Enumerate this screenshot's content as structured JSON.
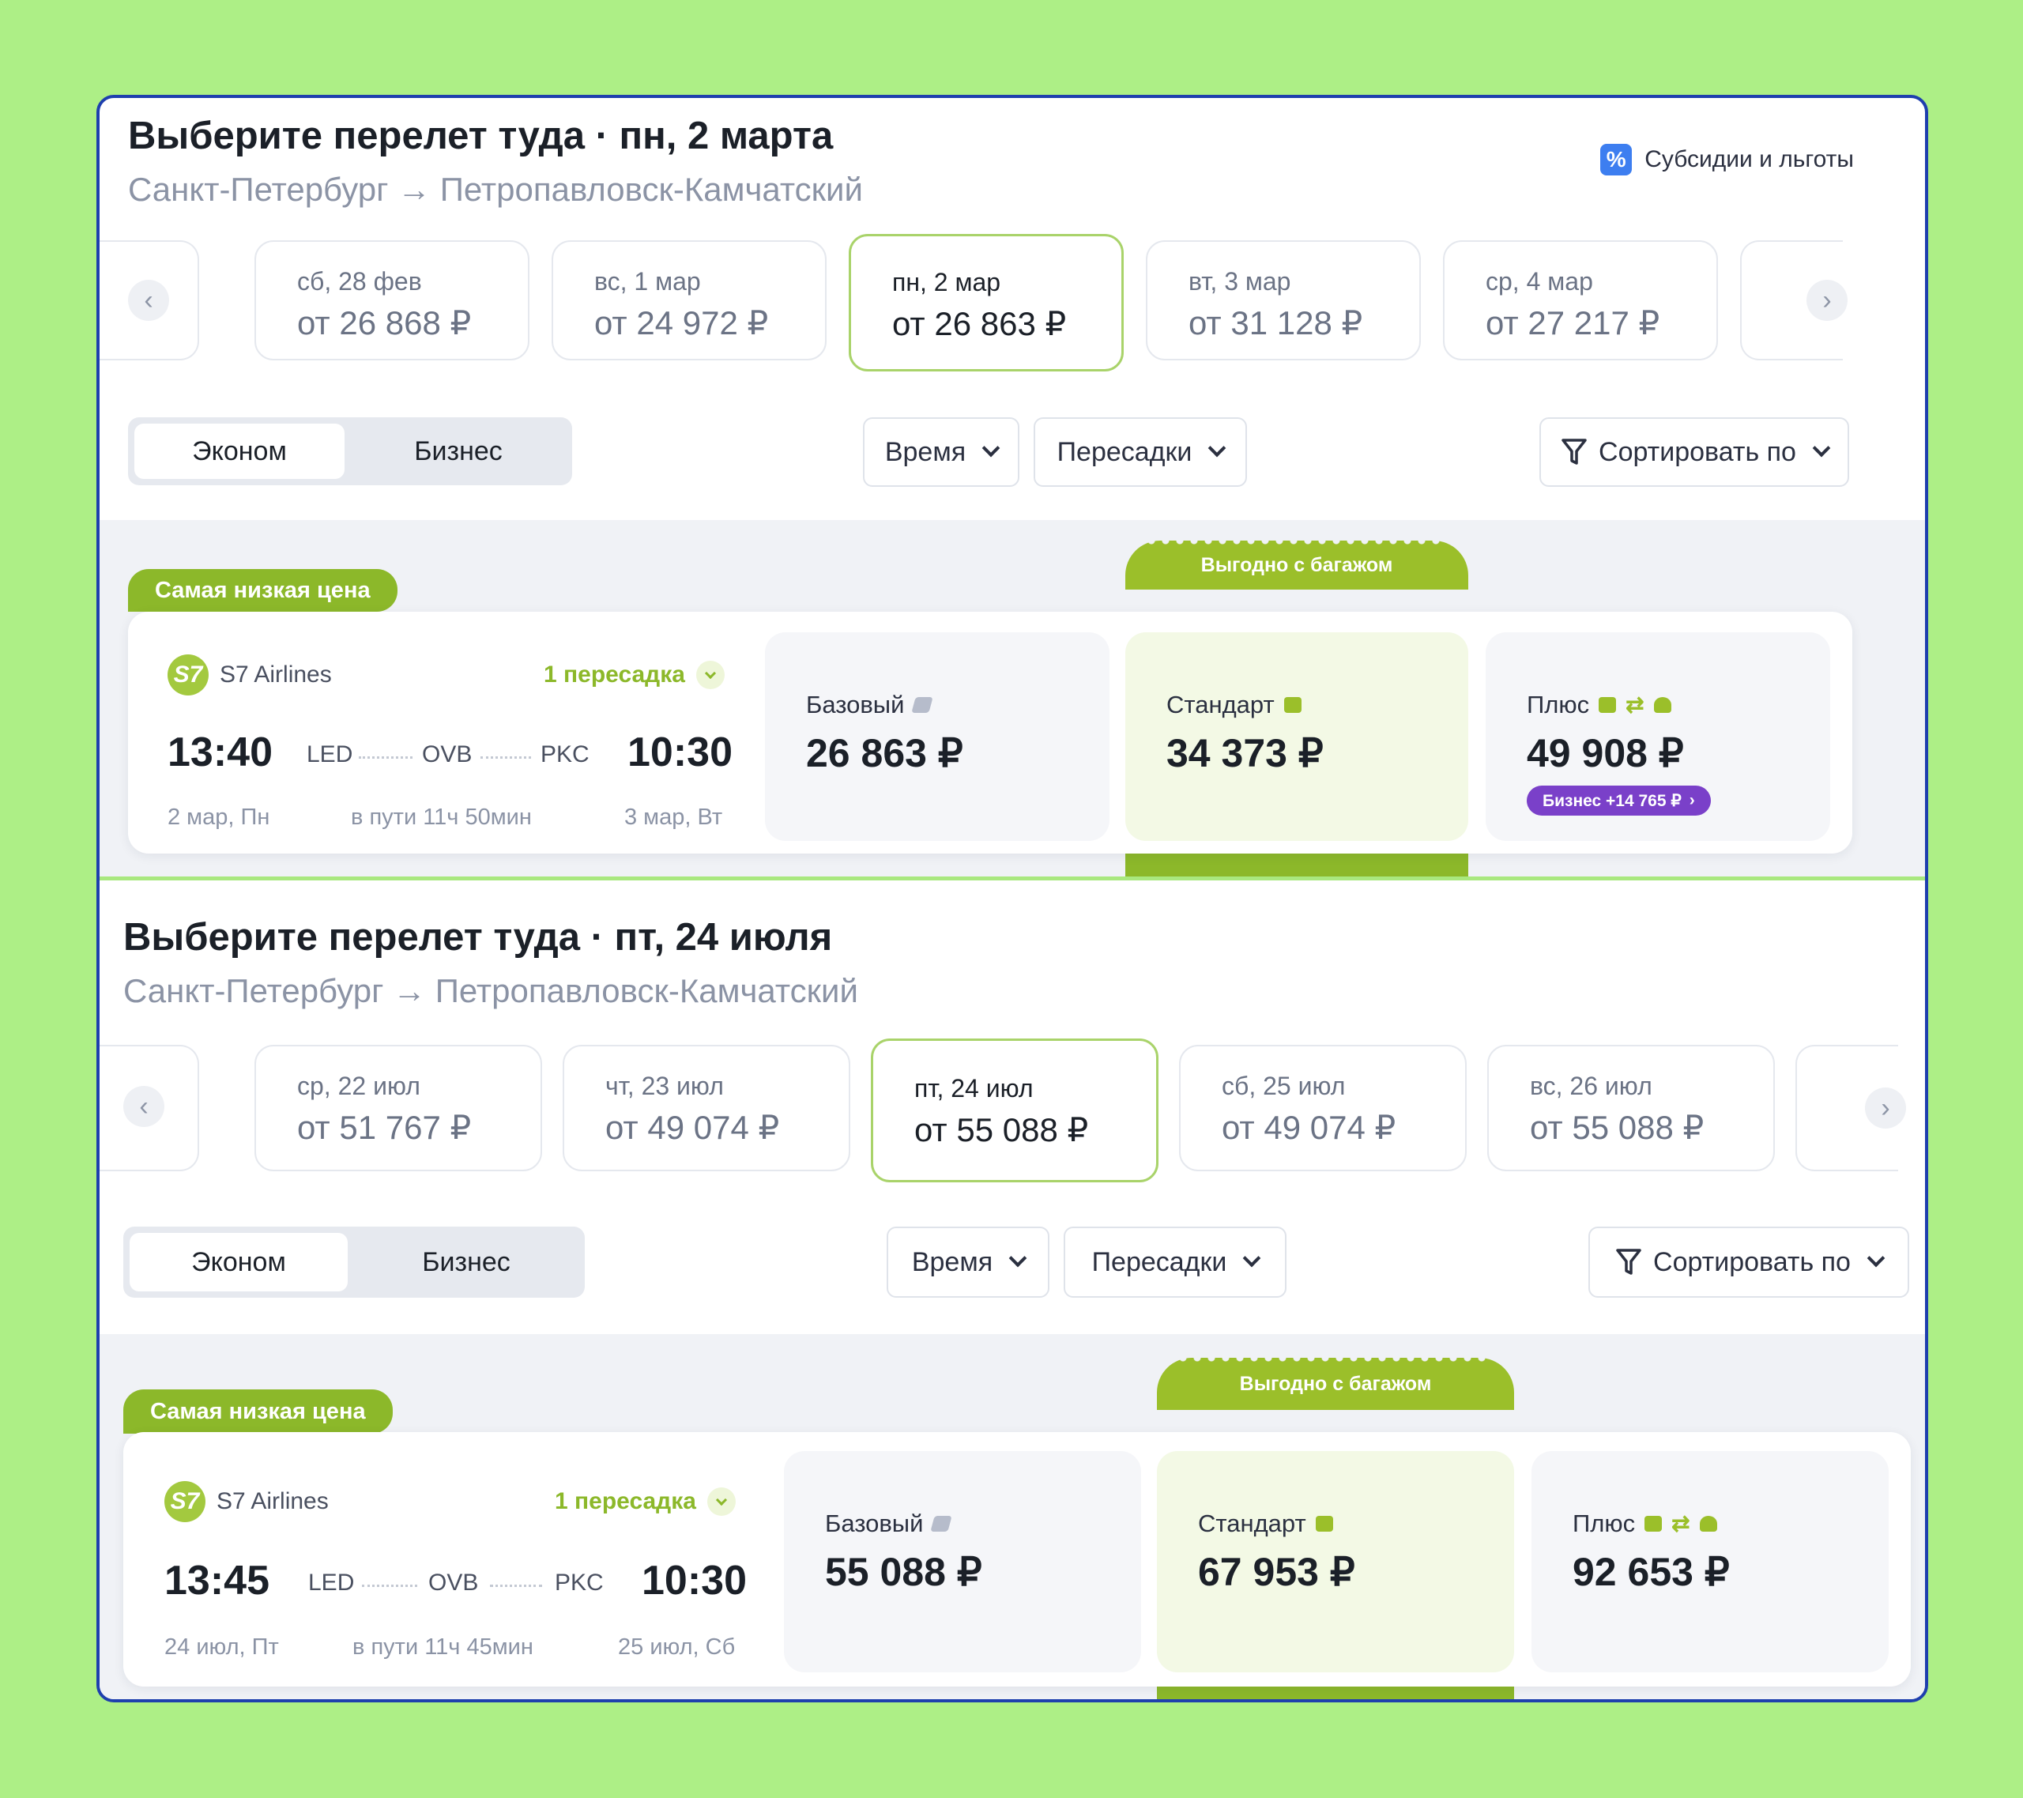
{
  "subsidy": {
    "label": "Субсидии и льготы",
    "icon": "percent-icon",
    "icon_text": "%"
  },
  "sections": [
    {
      "title": "Выберите перелет туда · пн, 2 марта",
      "route": "Санкт-Петербург → Петропавловск-Камчатский",
      "dates": [
        {
          "day": "сб, 28 фев",
          "price": "от 26 868 ₽",
          "selected": false
        },
        {
          "day": "вс, 1 мар",
          "price": "от 24 972 ₽",
          "selected": false
        },
        {
          "day": "пн, 2 мар",
          "price": "от 26 863 ₽",
          "selected": true
        },
        {
          "day": "вт, 3 мар",
          "price": "от 31 128 ₽",
          "selected": false
        },
        {
          "day": "ср, 4 мар",
          "price": "от 27 217 ₽",
          "selected": false
        }
      ],
      "classes": {
        "economy": "Эконом",
        "business": "Бизнес",
        "active": "economy"
      },
      "filters": {
        "time": "Время",
        "transfers": "Пересадки",
        "sort": "Сортировать по"
      },
      "lowest_badge": "Самая низкая цена",
      "baggage_badge": "Выгодно с багажом",
      "flight": {
        "airline": "S7 Airlines",
        "logo_text": "S7",
        "transfers": "1 пересадка",
        "dep_time": "13:40",
        "arr_time": "10:30",
        "from": "LED",
        "via": "OVB",
        "to": "PKC",
        "dep_date": "2 мар, Пн",
        "duration": "в пути 11ч 50мин",
        "arr_date": "3 мар, Вт"
      },
      "tariffs": [
        {
          "name": "Базовый",
          "price": "26 863 ₽"
        },
        {
          "name": "Стандарт",
          "price": "34 373 ₽"
        },
        {
          "name": "Плюс",
          "price": "49 908 ₽",
          "upgrade": "Бизнес +14 765 ₽"
        }
      ]
    },
    {
      "title": "Выберите перелет туда · пт, 24 июля",
      "route": "Санкт-Петербург → Петропавловск-Камчатский",
      "dates": [
        {
          "day": "ср, 22 июл",
          "price": "от 51 767 ₽",
          "selected": false
        },
        {
          "day": "чт, 23 июл",
          "price": "от 49 074 ₽",
          "selected": false
        },
        {
          "day": "пт, 24 июл",
          "price": "от 55 088 ₽",
          "selected": true
        },
        {
          "day": "сб, 25 июл",
          "price": "от 49 074 ₽",
          "selected": false
        },
        {
          "day": "вс, 26 июл",
          "price": "от 55 088 ₽",
          "selected": false
        }
      ],
      "classes": {
        "economy": "Эконом",
        "business": "Бизнес",
        "active": "economy"
      },
      "filters": {
        "time": "Время",
        "transfers": "Пересадки",
        "sort": "Сортировать по"
      },
      "lowest_badge": "Самая низкая цена",
      "baggage_badge": "Выгодно с багажом",
      "flight": {
        "airline": "S7 Airlines",
        "logo_text": "S7",
        "transfers": "1 пересадка",
        "dep_time": "13:45",
        "arr_time": "10:30",
        "from": "LED",
        "via": "OVB",
        "to": "PKC",
        "dep_date": "24 июл, Пт",
        "duration": "в пути 11ч 45мин",
        "arr_date": "25 июл, Сб"
      },
      "tariffs": [
        {
          "name": "Базовый",
          "price": "55 088 ₽"
        },
        {
          "name": "Стандарт",
          "price": "67 953 ₽"
        },
        {
          "name": "Плюс",
          "price": "92 653 ₽"
        }
      ]
    }
  ],
  "colors": {
    "accent_green": "#8cb82a",
    "frame_blue": "#1e3fae",
    "page_bg": "#adef86",
    "business_purple": "#7a40c9"
  }
}
